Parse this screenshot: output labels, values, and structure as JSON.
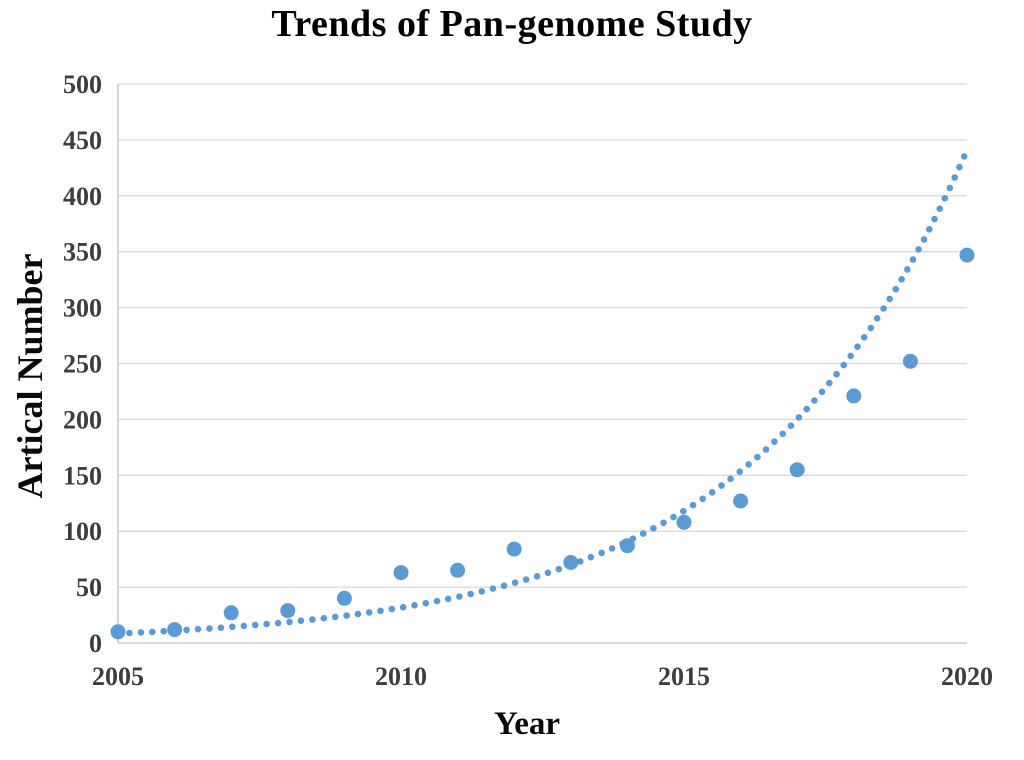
{
  "chart_data": {
    "type": "scatter",
    "title": "Trends of Pan-genome Study",
    "xlabel": "Year",
    "ylabel": "Artical Number",
    "x": [
      2005,
      2006,
      2007,
      2008,
      2009,
      2010,
      2011,
      2012,
      2013,
      2014,
      2015,
      2016,
      2017,
      2018,
      2019,
      2020
    ],
    "series": [
      {
        "name": "Article Number",
        "values": [
          10,
          12,
          27,
          29,
          40,
          63,
          65,
          84,
          72,
          87,
          108,
          127,
          155,
          221,
          252,
          347
        ]
      }
    ],
    "trendline": {
      "type": "exponential",
      "style": "dotted",
      "start_year": 2005,
      "end_year": 2020,
      "start_value": 8.5,
      "end_value": 441
    },
    "xlim": [
      2005,
      2020
    ],
    "ylim": [
      0,
      500
    ],
    "y_ticks": [
      0,
      50,
      100,
      150,
      200,
      250,
      300,
      350,
      400,
      450,
      500
    ],
    "x_ticks": [
      2005,
      2010,
      2015,
      2020
    ],
    "grid": "horizontal",
    "legend_position": "none",
    "colors": {
      "point": "#5B9BD5",
      "trend": "#5B9BD5",
      "gridline": "#D9D9D9",
      "axis_line": "#BFBFBF",
      "tick_label": "#3D3D3D",
      "title": "#000000"
    }
  }
}
